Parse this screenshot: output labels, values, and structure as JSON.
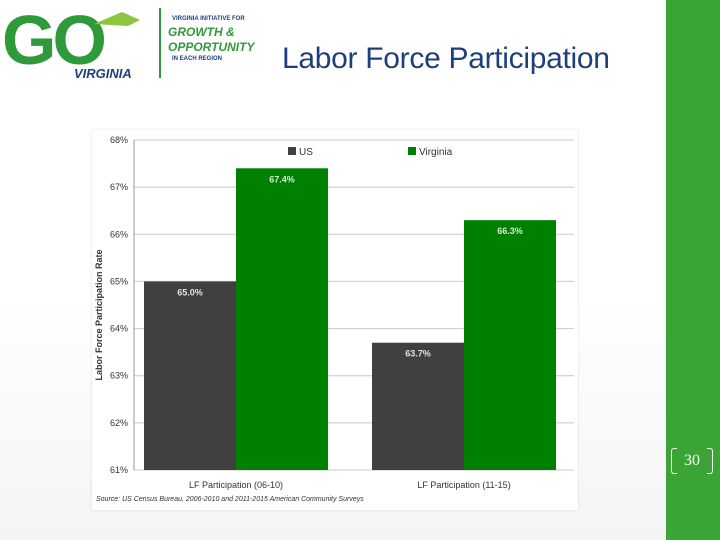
{
  "slide": {
    "title": "Labor Force Participation",
    "page_number": "30",
    "source_note": "Source: US Census Bureau, 2006-2010 and 2011-2015 American Community Surveys"
  },
  "logo": {
    "big_letters": "GO",
    "state": "VIRGINIA",
    "line1": "VIRGINIA INITIATIVE FOR",
    "line2": "GROWTH &",
    "line3": "OPPORTUNITY",
    "line4": "IN EACH REGION"
  },
  "colors": {
    "us": "#404040",
    "virginia": "#008000",
    "title": "#1f3f7a",
    "accent_bar": "#3aa534",
    "logo_green": "#2f9a3a",
    "logo_navy": "#1f3f7a"
  },
  "chart_data": {
    "type": "bar",
    "title": "",
    "xlabel": "",
    "ylabel": "Labor Force Participation Rate",
    "ylim": [
      61,
      68
    ],
    "yticks": [
      "61%",
      "62%",
      "63%",
      "64%",
      "65%",
      "66%",
      "67%",
      "68%"
    ],
    "grid": true,
    "legend_position": "top",
    "categories": [
      "LF Participation (06-10)",
      "LF Participation (11-15)"
    ],
    "series": [
      {
        "name": "US",
        "values": [
          65.0,
          63.7
        ],
        "labels": [
          "65.0%",
          "63.7%"
        ]
      },
      {
        "name": "Virginia",
        "values": [
          67.4,
          66.3
        ],
        "labels": [
          "67.4%",
          "66.3%"
        ]
      }
    ]
  }
}
